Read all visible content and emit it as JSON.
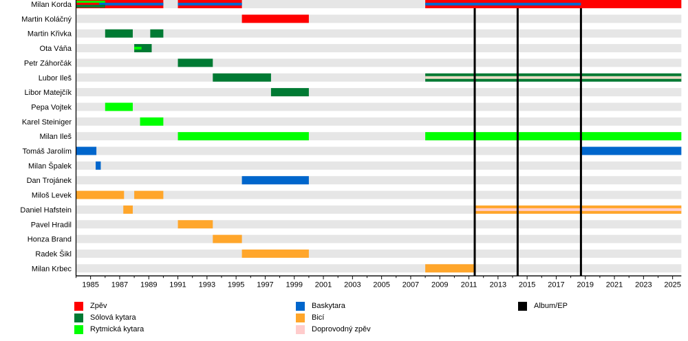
{
  "chart_data": {
    "type": "timeline",
    "title": "",
    "xlim": [
      1984,
      2025.6
    ],
    "x_ticks": [
      "1985",
      "1987",
      "1989",
      "1991",
      "1993",
      "1995",
      "1997",
      "1999",
      "2001",
      "2003",
      "2005",
      "2007",
      "2009",
      "2011",
      "2013",
      "2015",
      "2017",
      "2019",
      "2021",
      "2023",
      "2025"
    ],
    "colors": {
      "vocals": "#ff0000",
      "lead": "#007a33",
      "rhythm": "#00ff00",
      "bass": "#0066cc",
      "drums": "#ffa62b",
      "backing": "#ffcccc",
      "album": "#000000",
      "band_bg": "#e6e6e6"
    },
    "legend": [
      {
        "key": "vocals",
        "label": "Zpěv"
      },
      {
        "key": "lead",
        "label": "Sólová kytara"
      },
      {
        "key": "rhythm",
        "label": "Rytmická kytara"
      },
      {
        "key": "bass",
        "label": "Baskytara"
      },
      {
        "key": "drums",
        "label": "Bicí"
      },
      {
        "key": "backing",
        "label": "Doprovodný zpěv"
      },
      {
        "key": "album",
        "label": "Album/EP"
      }
    ],
    "members": [
      {
        "name": "Milan Korda",
        "bars": [
          {
            "role": "vocals",
            "from": 1984,
            "to": 1990
          },
          {
            "role": "vocals",
            "from": 1991,
            "to": 1995.4
          },
          {
            "role": "vocals",
            "from": 2008,
            "to": 2025.6
          },
          {
            "role": "bass",
            "from": 1985.6,
            "to": 1990,
            "stripe": true
          },
          {
            "role": "bass",
            "from": 1991,
            "to": 1995.4,
            "stripe": true
          },
          {
            "role": "bass",
            "from": 2008,
            "to": 2018.7,
            "stripe": true
          },
          {
            "role": "lead",
            "from": 1984,
            "to": 1986,
            "stripe": "low"
          },
          {
            "role": "rhythm",
            "from": 1984,
            "to": 1986,
            "stripe": "high"
          }
        ]
      },
      {
        "name": "Martin Koláčný",
        "bars": [
          {
            "role": "vocals",
            "from": 1995.4,
            "to": 2000
          }
        ]
      },
      {
        "name": "Martin Křivka",
        "bars": [
          {
            "role": "lead",
            "from": 1986,
            "to": 1987.9
          },
          {
            "role": "lead",
            "from": 1989.1,
            "to": 1990
          }
        ]
      },
      {
        "name": "Ota Váňa",
        "bars": [
          {
            "role": "lead",
            "from": 1988,
            "to": 1989.2
          },
          {
            "role": "rhythm",
            "from": 1988,
            "to": 1988.5,
            "stripe": true
          }
        ]
      },
      {
        "name": "Petr Záhorčák",
        "bars": [
          {
            "role": "lead",
            "from": 1991,
            "to": 1993.4
          }
        ]
      },
      {
        "name": "Lubor Ileš",
        "bars": [
          {
            "role": "lead",
            "from": 1993.4,
            "to": 1997.4
          },
          {
            "role": "lead",
            "from": 2008,
            "to": 2025.6
          },
          {
            "role": "backing",
            "from": 2008,
            "to": 2025.6,
            "stripe": true,
            "tint": "#e8dcc4"
          }
        ]
      },
      {
        "name": "Libor Matejčík",
        "bars": [
          {
            "role": "lead",
            "from": 1997.4,
            "to": 2000
          }
        ]
      },
      {
        "name": "Pepa Vojtek",
        "bars": [
          {
            "role": "rhythm",
            "from": 1986,
            "to": 1987.9
          }
        ]
      },
      {
        "name": "Karel Steiniger",
        "bars": [
          {
            "role": "rhythm",
            "from": 1988.4,
            "to": 1990
          }
        ]
      },
      {
        "name": "Milan Ileš",
        "bars": [
          {
            "role": "rhythm",
            "from": 1991,
            "to": 2000
          },
          {
            "role": "rhythm",
            "from": 2008,
            "to": 2025.6
          }
        ]
      },
      {
        "name": "Tomáš Jarolím",
        "bars": [
          {
            "role": "bass",
            "from": 1984,
            "to": 1985.4
          },
          {
            "role": "bass",
            "from": 2018.7,
            "to": 2025.6
          }
        ]
      },
      {
        "name": "Milan Špalek",
        "bars": [
          {
            "role": "bass",
            "from": 1985.35,
            "to": 1985.7
          }
        ]
      },
      {
        "name": "Dan Trojánek",
        "bars": [
          {
            "role": "bass",
            "from": 1995.4,
            "to": 2000
          }
        ]
      },
      {
        "name": "Miloš Levek",
        "bars": [
          {
            "role": "drums",
            "from": 1984,
            "to": 1987.3
          },
          {
            "role": "drums",
            "from": 1988,
            "to": 1990
          }
        ]
      },
      {
        "name": "Daniel Hafstein",
        "bars": [
          {
            "role": "drums",
            "from": 1987.25,
            "to": 1987.9
          },
          {
            "role": "drums",
            "from": 2011.4,
            "to": 2025.6
          },
          {
            "role": "backing",
            "from": 2011.4,
            "to": 2025.6,
            "stripe": true
          }
        ]
      },
      {
        "name": "Pavel Hradil",
        "bars": [
          {
            "role": "drums",
            "from": 1991,
            "to": 1993.4
          }
        ]
      },
      {
        "name": "Honza Brand",
        "bars": [
          {
            "role": "drums",
            "from": 1993.4,
            "to": 1995.4
          }
        ]
      },
      {
        "name": "Radek Šikl",
        "bars": [
          {
            "role": "drums",
            "from": 1995.4,
            "to": 2000
          }
        ]
      },
      {
        "name": "Milan Krbec",
        "bars": [
          {
            "role": "drums",
            "from": 2008,
            "to": 2011.4
          }
        ]
      }
    ],
    "albums": [
      2011.4,
      2014.35,
      2018.7
    ]
  }
}
